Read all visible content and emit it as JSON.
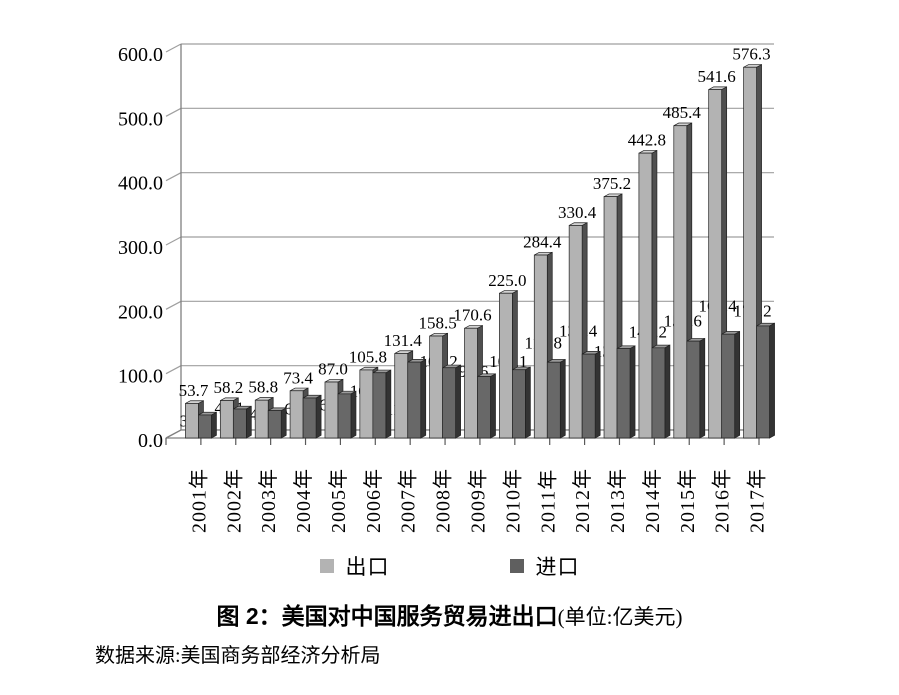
{
  "chart_data": {
    "type": "bar",
    "style": "3d-clustered-column",
    "title_main": "图 2：美国对中国服务贸易进出口",
    "title_unit": "(单位:亿美元)",
    "source": "数据来源:美国商务部经济分析局",
    "categories": [
      "2001年",
      "2002年",
      "2003年",
      "2004年",
      "2005年",
      "2006年",
      "2007年",
      "2008年",
      "2009年",
      "2010年",
      "2011年",
      "2012年",
      "2013年",
      "2014年",
      "2015年",
      "2016年",
      "2017年"
    ],
    "series": [
      {
        "name": "出口",
        "values": [
          53.7,
          58.2,
          58.8,
          73.4,
          87.0,
          105.8,
          131.4,
          158.5,
          170.6,
          225.0,
          284.4,
          330.4,
          375.2,
          442.8,
          485.4,
          541.6,
          576.3
        ],
        "front_color": "#b3b3b3",
        "side_color": "#4f4f4f",
        "top_color": "#d2d2d2"
      },
      {
        "name": "进口",
        "values": [
          35.8,
          45.1,
          42.6,
          62.2,
          68.6,
          101.4,
          118.0,
          109.2,
          95.6,
          106.1,
          117.8,
          130.4,
          139.1,
          140.2,
          150.6,
          161.4,
          174.2
        ],
        "front_color": "#686868",
        "side_color": "#333333",
        "top_color": "#9a9a9a"
      }
    ],
    "y_axis": {
      "min": 0,
      "max": 600,
      "step": 100,
      "tick_labels": [
        "0.0",
        "100.0",
        "200.0",
        "300.0",
        "400.0",
        "500.0",
        "600.0"
      ]
    },
    "data_labels": true,
    "label_format": "1-decimal",
    "legend_position": "bottom",
    "grid": true,
    "layout_hints": {
      "import_label_dy": [
        20,
        13,
        18,
        25,
        25,
        32,
        61,
        8,
        9,
        6,
        -5,
        -9,
        17,
        -2,
        -6,
        -14,
        -1
      ],
      "gridline_color": "#9f9f9f",
      "axis_color": "#7f7f7f",
      "outline_color": "#222222"
    }
  }
}
